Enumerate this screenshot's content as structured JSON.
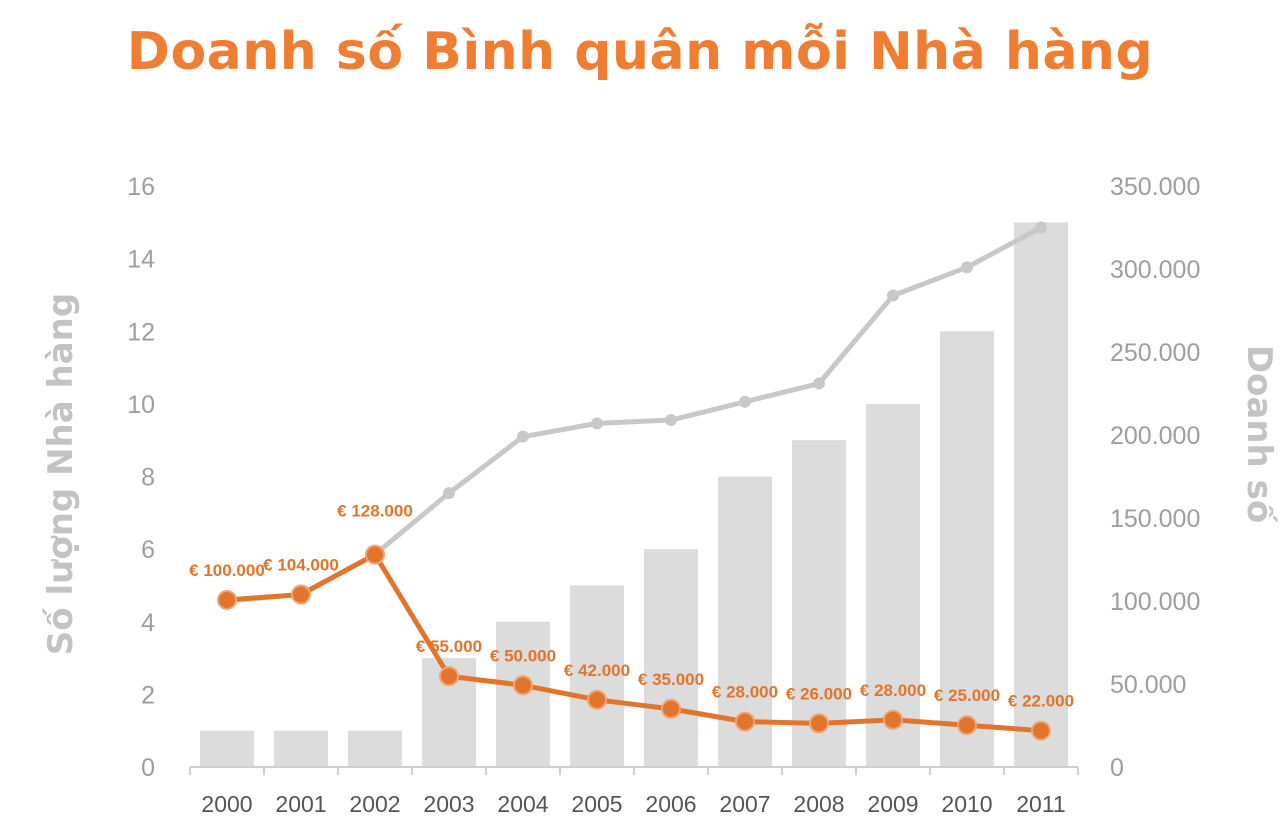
{
  "chart_data": {
    "type": "bar",
    "title": "Doanh số Bình quân mỗi Nhà hàng",
    "ylabel_left": "Số lượng Nhà hàng",
    "ylabel_right": "Doanh số",
    "categories": [
      "2000",
      "2001",
      "2002",
      "2003",
      "2004",
      "2005",
      "2006",
      "2007",
      "2008",
      "2009",
      "2010",
      "2011"
    ],
    "y_left_range": [
      0,
      16
    ],
    "y_left_ticks": [
      "0",
      "2",
      "4",
      "6",
      "8",
      "10",
      "12",
      "14",
      "16"
    ],
    "y_right_range": [
      0,
      350000
    ],
    "y_right_ticks": [
      "0",
      "50.000",
      "100.000",
      "150.000",
      "200.000",
      "250.000",
      "300.000",
      "350.000"
    ],
    "series": [
      {
        "type": "bar",
        "axis": "left",
        "color": "#dcdcdc",
        "values": [
          1,
          1,
          1,
          3,
          4,
          5,
          6,
          8,
          9,
          10,
          12,
          15
        ]
      },
      {
        "type": "line",
        "axis": "right",
        "color": "#c8c8c8",
        "values": [
          100000,
          104000,
          128000,
          165000,
          199000,
          207000,
          209000,
          220000,
          231000,
          284000,
          301000,
          325000
        ]
      },
      {
        "type": "line",
        "axis": "left",
        "color": "#e2752c",
        "values": [
          4.6,
          4.75,
          5.85,
          2.5,
          2.25,
          1.85,
          1.6,
          1.25,
          1.2,
          1.3,
          1.15,
          1.0
        ],
        "data_labels": [
          "€ 100.000",
          "€ 104.000",
          "€ 128.000",
          "€ 55.000",
          "€ 50.000",
          "€ 42.000",
          "€ 35.000",
          "€ 28.000",
          "€ 26.000",
          "€ 28.000",
          "€ 25.000",
          "€ 22.000"
        ]
      }
    ],
    "grid": false,
    "legend": "none"
  }
}
